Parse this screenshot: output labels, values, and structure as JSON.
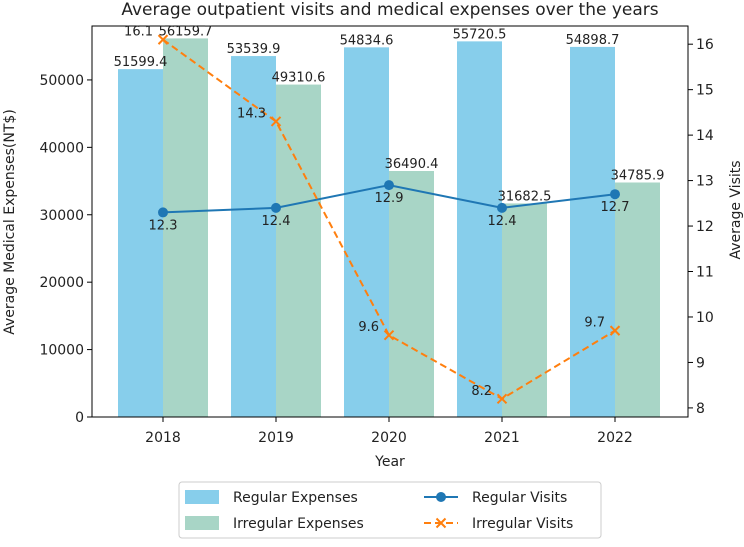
{
  "chart_data": {
    "type": "bar+line",
    "title": "Average outpatient visits and medical expenses over the years",
    "xlabel": "Year",
    "ylabel_left": "Average Medical Expenses(NT$)",
    "ylabel_right": "Average Visits",
    "categories": [
      "2018",
      "2019",
      "2020",
      "2021",
      "2022"
    ],
    "ylim_left": [
      0,
      58000
    ],
    "ylim_right": [
      7.8,
      16.4
    ],
    "yticks_left": [
      0,
      10000,
      20000,
      30000,
      40000,
      50000
    ],
    "yticks_right": [
      8,
      9,
      10,
      11,
      12,
      13,
      14,
      15,
      16
    ],
    "bar_series": [
      {
        "name": "Regular Expenses",
        "color": "#87ceeb",
        "values": [
          51599.4,
          53539.9,
          54834.6,
          55720.5,
          54898.7
        ],
        "labels": [
          "51599.4",
          "53539.9",
          "54834.6",
          "55720.5",
          "54898.7"
        ]
      },
      {
        "name": "Irregular Expenses",
        "color": "#a8d5c6",
        "values": [
          56159.7,
          49310.6,
          36490.4,
          31682.5,
          34785.9
        ],
        "labels": [
          "56159.7",
          "49310.6",
          "36490.4",
          "31682.5",
          "34785.9"
        ]
      }
    ],
    "line_series": [
      {
        "name": "Regular Visits",
        "color": "#1f77b4",
        "marker": "circle",
        "style": "solid",
        "values": [
          12.3,
          12.4,
          12.9,
          12.4,
          12.7
        ],
        "labels": [
          "12.3",
          "12.4",
          "12.9",
          "12.4",
          "12.7"
        ]
      },
      {
        "name": "Irregular Visits",
        "color": "#ff7f0e",
        "marker": "x",
        "style": "dashed",
        "values": [
          16.1,
          14.3,
          9.6,
          8.2,
          9.7
        ],
        "labels": [
          "16.1",
          "14.3",
          "9.6",
          "8.2",
          "9.7"
        ]
      }
    ],
    "legend": {
      "position": "bottom-center",
      "columns": 2
    }
  }
}
